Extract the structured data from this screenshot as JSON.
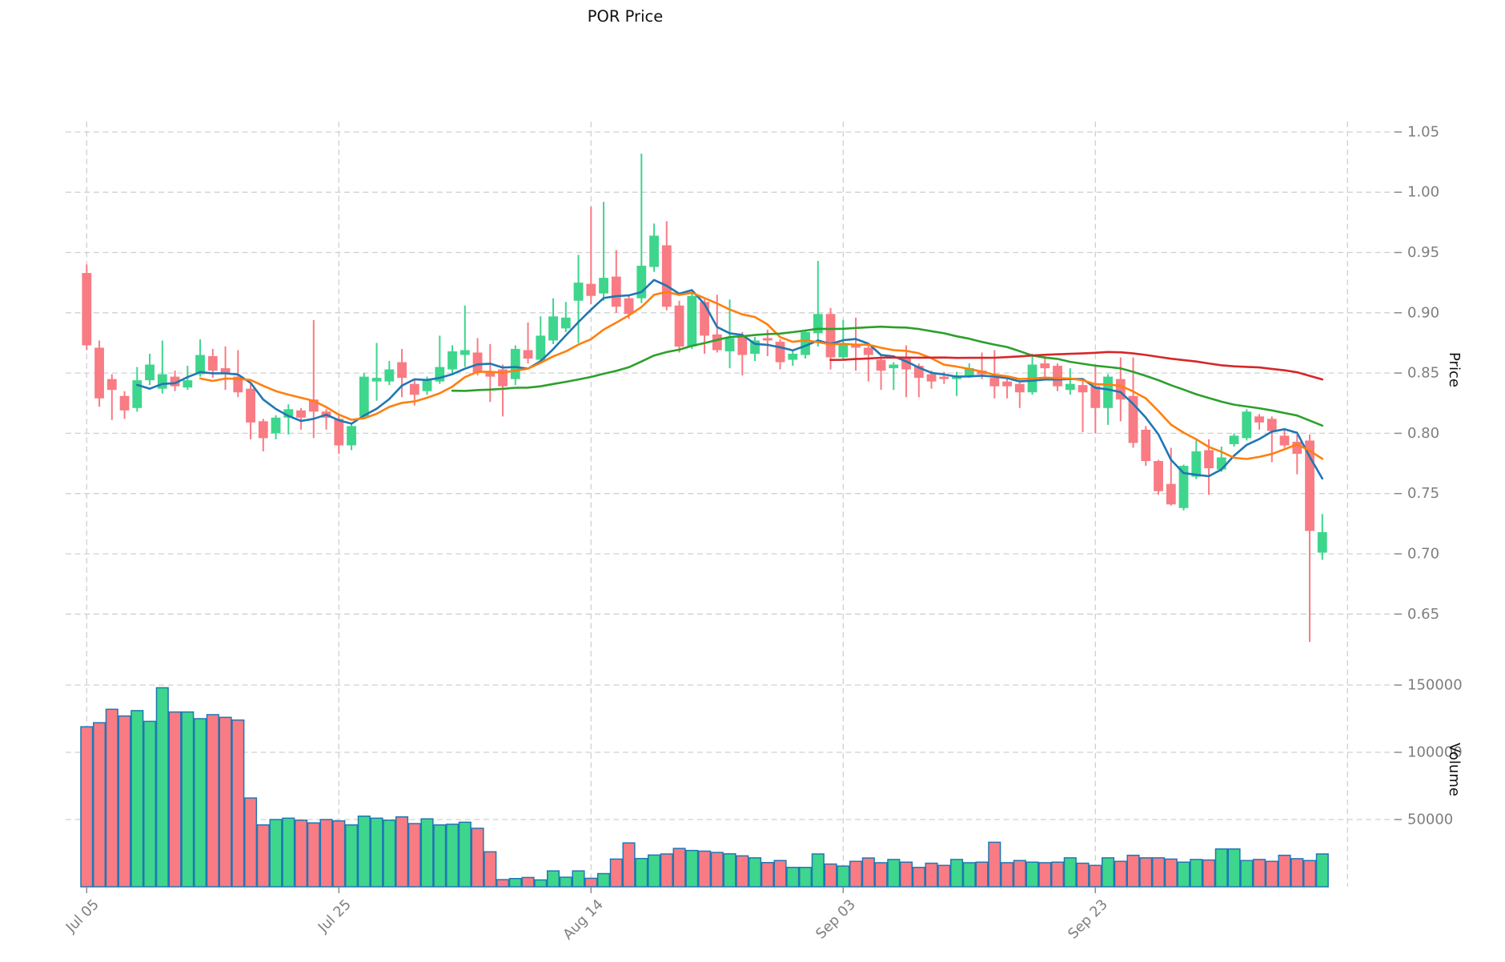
{
  "title": "POR Price",
  "price_axis": {
    "label": "Price",
    "ticks": [
      0.65,
      0.7,
      0.75,
      0.8,
      0.85,
      0.9,
      0.95,
      1.0,
      1.05
    ]
  },
  "volume_axis": {
    "label": "Volume",
    "ticks": [
      50000,
      100000,
      150000
    ]
  },
  "x_axis": {
    "tick_labels": [
      "Jul 05",
      "Jul 25",
      "Aug 14",
      "Sep 03",
      "Sep 23"
    ],
    "tick_indices": [
      0,
      20,
      40,
      60,
      80
    ],
    "extra_gridline_indices": [
      100
    ]
  },
  "colors": {
    "up": "#3dd68c",
    "down": "#f97b83",
    "volume_edge": "#1f77b4",
    "grid": "#d0d0d0",
    "tick_text": "#7e7e7e",
    "tick_mark": "#8a8a8a",
    "title_text": "#111111"
  },
  "chart_data": {
    "type": "candlestick",
    "title": "POR Price",
    "xlabel": "",
    "ylabel_price": "Price",
    "ylabel_volume": "Volume",
    "grid": true,
    "price_ylim_ticks": [
      0.65,
      1.05
    ],
    "volume_ticks": [
      50000,
      100000,
      150000
    ],
    "moving_averages": [
      {
        "name": "MA5",
        "window": 5,
        "color": "#1f77b4"
      },
      {
        "name": "MA10",
        "window": 10,
        "color": "#ff7f0e"
      },
      {
        "name": "MA30",
        "window": 30,
        "color": "#2ca02c"
      },
      {
        "name": "MA60",
        "window": 60,
        "color": "#d62728"
      }
    ],
    "ohlc": [
      [
        0.933,
        0.94,
        0.869,
        0.873
      ],
      [
        0.871,
        0.877,
        0.822,
        0.829
      ],
      [
        0.845,
        0.849,
        0.811,
        0.836
      ],
      [
        0.831,
        0.835,
        0.812,
        0.819
      ],
      [
        0.821,
        0.855,
        0.818,
        0.844
      ],
      [
        0.844,
        0.866,
        0.84,
        0.857
      ],
      [
        0.837,
        0.877,
        0.833,
        0.849
      ],
      [
        0.847,
        0.852,
        0.835,
        0.839
      ],
      [
        0.838,
        0.856,
        0.836,
        0.844
      ],
      [
        0.849,
        0.878,
        0.847,
        0.865
      ],
      [
        0.864,
        0.87,
        0.846,
        0.852
      ],
      [
        0.854,
        0.872,
        0.836,
        0.849
      ],
      [
        0.847,
        0.869,
        0.83,
        0.834
      ],
      [
        0.837,
        0.841,
        0.795,
        0.809
      ],
      [
        0.81,
        0.812,
        0.785,
        0.796
      ],
      [
        0.8,
        0.815,
        0.795,
        0.813
      ],
      [
        0.813,
        0.824,
        0.799,
        0.82
      ],
      [
        0.819,
        0.821,
        0.803,
        0.813
      ],
      [
        0.828,
        0.894,
        0.796,
        0.818
      ],
      [
        0.818,
        0.82,
        0.803,
        0.813
      ],
      [
        0.812,
        0.815,
        0.783,
        0.79
      ],
      [
        0.79,
        0.808,
        0.786,
        0.806
      ],
      [
        0.814,
        0.85,
        0.812,
        0.847
      ],
      [
        0.843,
        0.875,
        0.827,
        0.846
      ],
      [
        0.843,
        0.86,
        0.84,
        0.853
      ],
      [
        0.859,
        0.87,
        0.83,
        0.846
      ],
      [
        0.841,
        0.844,
        0.823,
        0.832
      ],
      [
        0.835,
        0.847,
        0.832,
        0.844
      ],
      [
        0.843,
        0.881,
        0.841,
        0.855
      ],
      [
        0.853,
        0.873,
        0.85,
        0.868
      ],
      [
        0.865,
        0.906,
        0.855,
        0.869
      ],
      [
        0.867,
        0.879,
        0.848,
        0.85
      ],
      [
        0.851,
        0.874,
        0.826,
        0.847
      ],
      [
        0.853,
        0.857,
        0.814,
        0.839
      ],
      [
        0.845,
        0.873,
        0.84,
        0.87
      ],
      [
        0.869,
        0.892,
        0.858,
        0.862
      ],
      [
        0.861,
        0.897,
        0.858,
        0.881
      ],
      [
        0.877,
        0.912,
        0.874,
        0.897
      ],
      [
        0.887,
        0.909,
        0.884,
        0.896
      ],
      [
        0.91,
        0.948,
        0.875,
        0.925
      ],
      [
        0.924,
        0.988,
        0.907,
        0.914
      ],
      [
        0.916,
        0.992,
        0.91,
        0.929
      ],
      [
        0.93,
        0.952,
        0.9,
        0.905
      ],
      [
        0.912,
        0.914,
        0.895,
        0.899
      ],
      [
        0.912,
        1.032,
        0.908,
        0.939
      ],
      [
        0.938,
        0.974,
        0.934,
        0.964
      ],
      [
        0.956,
        0.976,
        0.902,
        0.905
      ],
      [
        0.906,
        0.91,
        0.867,
        0.872
      ],
      [
        0.872,
        0.916,
        0.87,
        0.914
      ],
      [
        0.909,
        0.911,
        0.866,
        0.881
      ],
      [
        0.882,
        0.915,
        0.867,
        0.869
      ],
      [
        0.868,
        0.911,
        0.854,
        0.879
      ],
      [
        0.881,
        0.884,
        0.848,
        0.865
      ],
      [
        0.866,
        0.88,
        0.86,
        0.877
      ],
      [
        0.879,
        0.886,
        0.864,
        0.877
      ],
      [
        0.876,
        0.878,
        0.853,
        0.859
      ],
      [
        0.861,
        0.868,
        0.856,
        0.866
      ],
      [
        0.865,
        0.886,
        0.862,
        0.884
      ],
      [
        0.883,
        0.943,
        0.872,
        0.899
      ],
      [
        0.899,
        0.904,
        0.853,
        0.863
      ],
      [
        0.863,
        0.894,
        0.861,
        0.874
      ],
      [
        0.874,
        0.896,
        0.852,
        0.871
      ],
      [
        0.871,
        0.874,
        0.843,
        0.865
      ],
      [
        0.861,
        0.865,
        0.836,
        0.852
      ],
      [
        0.854,
        0.859,
        0.836,
        0.857
      ],
      [
        0.863,
        0.873,
        0.83,
        0.853
      ],
      [
        0.856,
        0.858,
        0.83,
        0.846
      ],
      [
        0.849,
        0.852,
        0.837,
        0.843
      ],
      [
        0.847,
        0.851,
        0.841,
        0.845
      ],
      [
        0.845,
        0.851,
        0.831,
        0.848
      ],
      [
        0.848,
        0.858,
        0.846,
        0.854
      ],
      [
        0.852,
        0.867,
        0.845,
        0.849
      ],
      [
        0.846,
        0.869,
        0.829,
        0.839
      ],
      [
        0.843,
        0.845,
        0.829,
        0.839
      ],
      [
        0.841,
        0.842,
        0.821,
        0.834
      ],
      [
        0.834,
        0.866,
        0.832,
        0.857
      ],
      [
        0.858,
        0.864,
        0.847,
        0.854
      ],
      [
        0.856,
        0.858,
        0.835,
        0.839
      ],
      [
        0.836,
        0.854,
        0.832,
        0.841
      ],
      [
        0.84,
        0.843,
        0.801,
        0.834
      ],
      [
        0.839,
        0.857,
        0.8,
        0.821
      ],
      [
        0.821,
        0.849,
        0.807,
        0.847
      ],
      [
        0.845,
        0.863,
        0.81,
        0.828
      ],
      [
        0.831,
        0.863,
        0.788,
        0.792
      ],
      [
        0.803,
        0.806,
        0.773,
        0.777
      ],
      [
        0.777,
        0.778,
        0.749,
        0.752
      ],
      [
        0.758,
        0.788,
        0.74,
        0.741
      ],
      [
        0.738,
        0.774,
        0.736,
        0.773
      ],
      [
        0.764,
        0.794,
        0.762,
        0.785
      ],
      [
        0.786,
        0.795,
        0.749,
        0.771
      ],
      [
        0.77,
        0.789,
        0.768,
        0.78
      ],
      [
        0.791,
        0.8,
        0.789,
        0.798
      ],
      [
        0.796,
        0.82,
        0.794,
        0.818
      ],
      [
        0.814,
        0.816,
        0.803,
        0.809
      ],
      [
        0.812,
        0.814,
        0.776,
        0.802
      ],
      [
        0.798,
        0.803,
        0.788,
        0.79
      ],
      [
        0.793,
        0.799,
        0.766,
        0.783
      ],
      [
        0.794,
        0.799,
        0.627,
        0.719
      ],
      [
        0.701,
        0.733,
        0.695,
        0.718
      ]
    ],
    "volume": [
      119000,
      122000,
      132000,
      127000,
      131000,
      123000,
      148000,
      130000,
      130000,
      125000,
      128000,
      126000,
      124000,
      66000,
      46000,
      50000,
      51000,
      49500,
      47500,
      50000,
      49000,
      46000,
      52500,
      51000,
      49500,
      52000,
      47000,
      50500,
      46000,
      46500,
      48000,
      43500,
      26000,
      5300,
      6100,
      6900,
      5100,
      11800,
      7100,
      11800,
      6300,
      9800,
      20600,
      32600,
      21000,
      23600,
      24400,
      28500,
      27000,
      26500,
      25500,
      24500,
      23000,
      21500,
      18000,
      19500,
      14400,
      14400,
      24400,
      16900,
      15400,
      18900,
      21400,
      17900,
      20300,
      18300,
      14400,
      17500,
      15900,
      20300,
      17900,
      18300,
      33100,
      17900,
      19500,
      18300,
      17900,
      18300,
      21500,
      17500,
      15900,
      21500,
      18900,
      23400,
      21500,
      21500,
      20600,
      18300,
      20300,
      19900,
      28100,
      28100,
      19500,
      20300,
      18900,
      23400,
      20900,
      19500,
      24400
    ]
  }
}
